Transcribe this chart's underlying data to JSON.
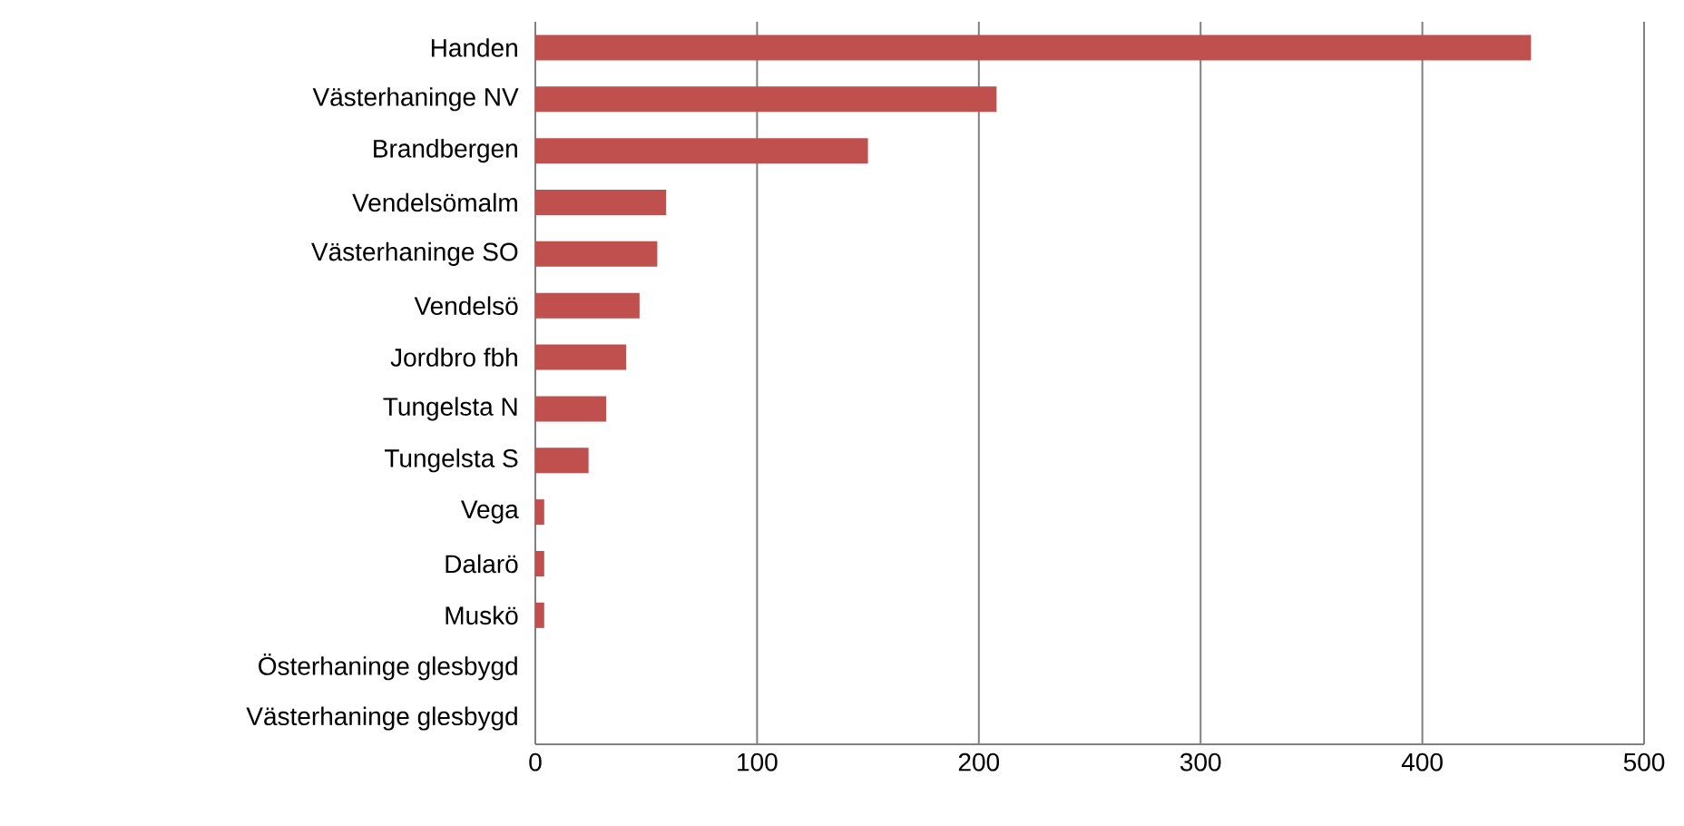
{
  "chart_data": {
    "type": "bar",
    "orientation": "horizontal",
    "categories": [
      "Handen",
      "Västerhaninge NV",
      "Brandbergen",
      "Vendelsömalm",
      "Västerhaninge SO",
      "Vendelsö",
      "Jordbro fbh",
      "Tungelsta N",
      "Tungelsta S",
      "Vega",
      "Dalarö",
      "Muskö",
      "Österhaninge glesbygd",
      "Västerhaninge glesbygd"
    ],
    "values": [
      449,
      208,
      150,
      59,
      55,
      47,
      41,
      32,
      24,
      4,
      4,
      4,
      0,
      0
    ],
    "color": "#c0504d",
    "xlim": [
      0,
      500
    ],
    "xticks": [
      0,
      100,
      200,
      300,
      400,
      500
    ],
    "grid": "x"
  }
}
